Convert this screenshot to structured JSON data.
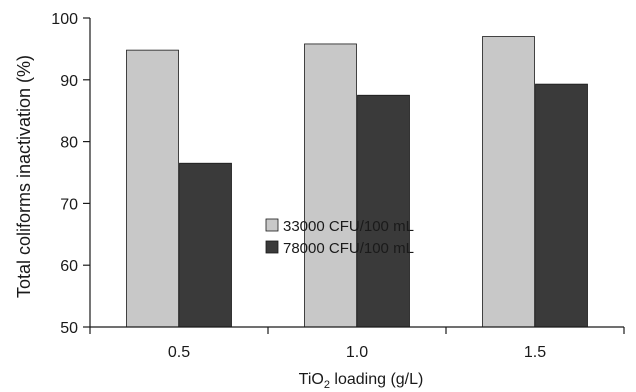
{
  "chart_data": {
    "type": "bar",
    "categories": [
      "0.5",
      "1.0",
      "1.5"
    ],
    "series": [
      {
        "name": "33000 CFU/100 mL",
        "values": [
          94.8,
          95.8,
          97.0
        ],
        "color": "#c8c8c8"
      },
      {
        "name": "78000 CFU/100 mL",
        "values": [
          76.5,
          87.5,
          89.3
        ],
        "color": "#3a3a3a"
      }
    ],
    "yticks": [
      "50",
      "60",
      "70",
      "80",
      "90",
      "100"
    ],
    "ylim": [
      50,
      100
    ],
    "ylabel": "Total coliforms inactivation (%)",
    "xlabel": {
      "prefix": "TiO",
      "subscript": "2",
      "suffix": " loading (g/L)"
    },
    "grid": false,
    "legend_position": "center"
  }
}
